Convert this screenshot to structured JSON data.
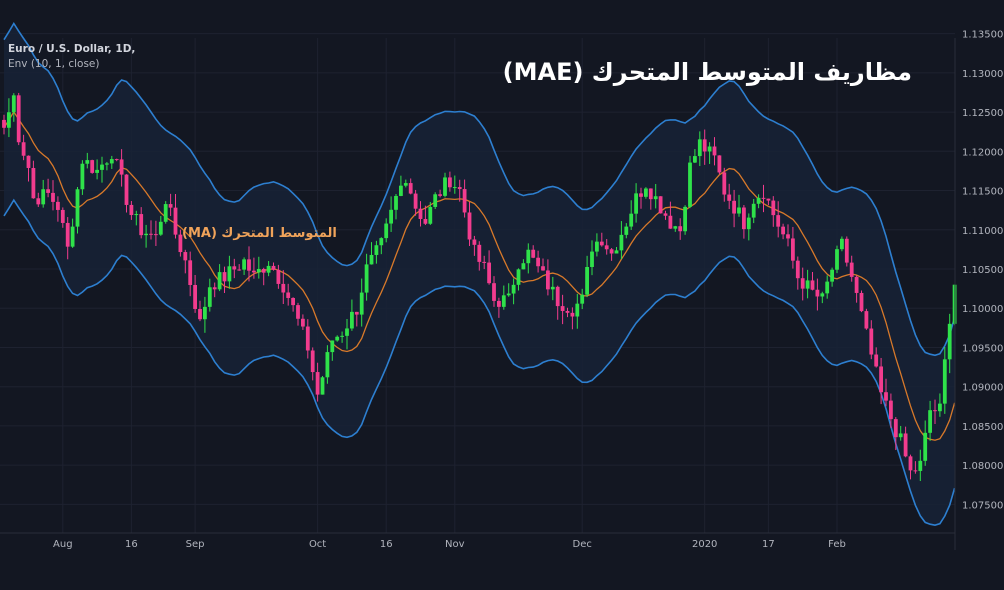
{
  "header": {
    "symbol": "Euro / U.S. Dollar, 1D,",
    "indicator": "Env (10, 1, close)"
  },
  "title": "مظاريف المتوسط المتحرك (MAE)",
  "ma_annotation": "المتوسط المتحرك (MA)",
  "colors": {
    "background": "#131722",
    "grid": "#1e2230",
    "up_candle": "#2fe24a",
    "down_candle": "#f23c8e",
    "band_line": "#2d7fd0",
    "band_fill": "#172236",
    "ma_line": "#d8792a",
    "axis_text": "#b2b5be"
  },
  "chart_data": {
    "type": "candlestick",
    "y_axis": {
      "min": 1.0725,
      "max": 1.1375,
      "ticks": [
        "1.13500",
        "1.13000",
        "1.12500",
        "1.12000",
        "1.11500",
        "1.11000",
        "1.10500",
        "1.10000",
        "1.09500",
        "1.09000",
        "1.08500",
        "1.08000",
        "1.07500"
      ]
    },
    "x_ticks": [
      {
        "label": "Aug",
        "bar": 12
      },
      {
        "label": "16",
        "bar": 26
      },
      {
        "label": "Sep",
        "bar": 39
      },
      {
        "label": "Oct",
        "bar": 64
      },
      {
        "label": "16",
        "bar": 78
      },
      {
        "label": "Nov",
        "bar": 92
      },
      {
        "label": "Dec",
        "bar": 118
      },
      {
        "label": "2020",
        "bar": 143
      },
      {
        "label": "17",
        "bar": 156
      },
      {
        "label": "Feb",
        "bar": 170
      }
    ],
    "close_anchors": [
      [
        0,
        1.123
      ],
      [
        2,
        1.127
      ],
      [
        3,
        1.122
      ],
      [
        5,
        1.118
      ],
      [
        6,
        1.114
      ],
      [
        9,
        1.1145
      ],
      [
        11,
        1.113
      ],
      [
        13,
        1.1075
      ],
      [
        16,
        1.119
      ],
      [
        19,
        1.1175
      ],
      [
        22,
        1.12
      ],
      [
        24,
        1.116
      ],
      [
        26,
        1.112
      ],
      [
        28,
        1.11
      ],
      [
        31,
        1.109
      ],
      [
        33,
        1.114
      ],
      [
        35,
        1.1095
      ],
      [
        37,
        1.106
      ],
      [
        40,
        1.098
      ],
      [
        42,
        1.103
      ],
      [
        45,
        1.104
      ],
      [
        49,
        1.106
      ],
      [
        51,
        1.104
      ],
      [
        54,
        1.106
      ],
      [
        57,
        1.103
      ],
      [
        59,
        1.1
      ],
      [
        62,
        1.095
      ],
      [
        64,
        1.089
      ],
      [
        67,
        1.096
      ],
      [
        69,
        1.097
      ],
      [
        72,
        1.1
      ],
      [
        74,
        1.105
      ],
      [
        77,
        1.108
      ],
      [
        80,
        1.114
      ],
      [
        82,
        1.117
      ],
      [
        84,
        1.113
      ],
      [
        86,
        1.111
      ],
      [
        88,
        1.114
      ],
      [
        91,
        1.1165
      ],
      [
        93,
        1.115
      ],
      [
        96,
        1.107
      ],
      [
        98,
        1.105
      ],
      [
        100,
        1.101
      ],
      [
        103,
        1.101
      ],
      [
        105,
        1.106
      ],
      [
        107,
        1.107
      ],
      [
        110,
        1.104
      ],
      [
        113,
        1.101
      ],
      [
        116,
        1.1
      ],
      [
        118,
        1.101
      ],
      [
        120,
        1.108
      ],
      [
        122,
        1.109
      ],
      [
        124,
        1.107
      ],
      [
        127,
        1.111
      ],
      [
        129,
        1.114
      ],
      [
        131,
        1.116
      ],
      [
        134,
        1.113
      ],
      [
        136,
        1.111
      ],
      [
        138,
        1.11
      ],
      [
        140,
        1.118
      ],
      [
        142,
        1.121
      ],
      [
        145,
        1.119
      ],
      [
        147,
        1.115
      ],
      [
        149,
        1.113
      ],
      [
        151,
        1.111
      ],
      [
        153,
        1.114
      ],
      [
        155,
        1.115
      ],
      [
        157,
        1.112
      ],
      [
        160,
        1.108
      ],
      [
        162,
        1.104
      ],
      [
        165,
        1.102
      ],
      [
        167,
        1.101
      ],
      [
        169,
        1.105
      ],
      [
        171,
        1.108
      ],
      [
        173,
        1.104
      ],
      [
        175,
        1.099
      ],
      [
        177,
        1.094
      ],
      [
        179,
        1.089
      ],
      [
        181,
        1.086
      ],
      [
        183,
        1.083
      ],
      [
        185,
        1.079
      ],
      [
        187,
        1.08
      ],
      [
        189,
        1.087
      ],
      [
        191,
        1.087
      ],
      [
        193,
        1.099
      ],
      [
        194,
        1.103
      ]
    ],
    "envelope_percent": 1,
    "ma_period": 10
  }
}
